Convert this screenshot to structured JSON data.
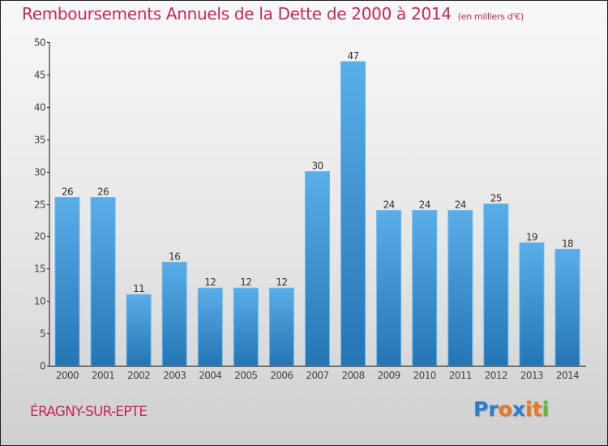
{
  "header": {
    "title": "Remboursements Annuels de la Dette de 2000 à 2014",
    "unit": "(en milliers d'€)"
  },
  "footer": {
    "commune": "ÉRAGNY-SUR-EPTE",
    "logo": {
      "letters": [
        {
          "ch": "P",
          "color": "#2a7fd0"
        },
        {
          "ch": "r",
          "color": "#2a7fd0"
        },
        {
          "ch": "o",
          "color": "#e8781e"
        },
        {
          "ch": "x",
          "color": "#2a7fd0"
        },
        {
          "ch": "i",
          "color": "#e8781e"
        },
        {
          "ch": "t",
          "color": "#e8781e"
        },
        {
          "ch": "i",
          "color": "#5cb82e"
        }
      ]
    }
  },
  "colors": {
    "title": "#c8285a",
    "bar_top": "#5aaee8",
    "bar_bottom": "#2475b4",
    "bar_edge": "#6bb8f0"
  },
  "chart_data": {
    "type": "bar",
    "title": "Remboursements Annuels de la Dette de 2000 à 2014",
    "subtitle": "(en milliers d'€)",
    "xlabel": "",
    "ylabel": "",
    "categories": [
      "2000",
      "2001",
      "2002",
      "2003",
      "2004",
      "2005",
      "2006",
      "2007",
      "2008",
      "2009",
      "2010",
      "2011",
      "2012",
      "2013",
      "2014"
    ],
    "values": [
      26,
      26,
      11,
      16,
      12,
      12,
      12,
      30,
      47,
      24,
      24,
      24,
      25,
      19,
      18
    ],
    "ylim": [
      0,
      50
    ],
    "yticks": [
      0,
      5,
      10,
      15,
      20,
      25,
      30,
      35,
      40,
      45,
      50
    ],
    "grid": false,
    "data_labels": true,
    "legend": "none"
  }
}
